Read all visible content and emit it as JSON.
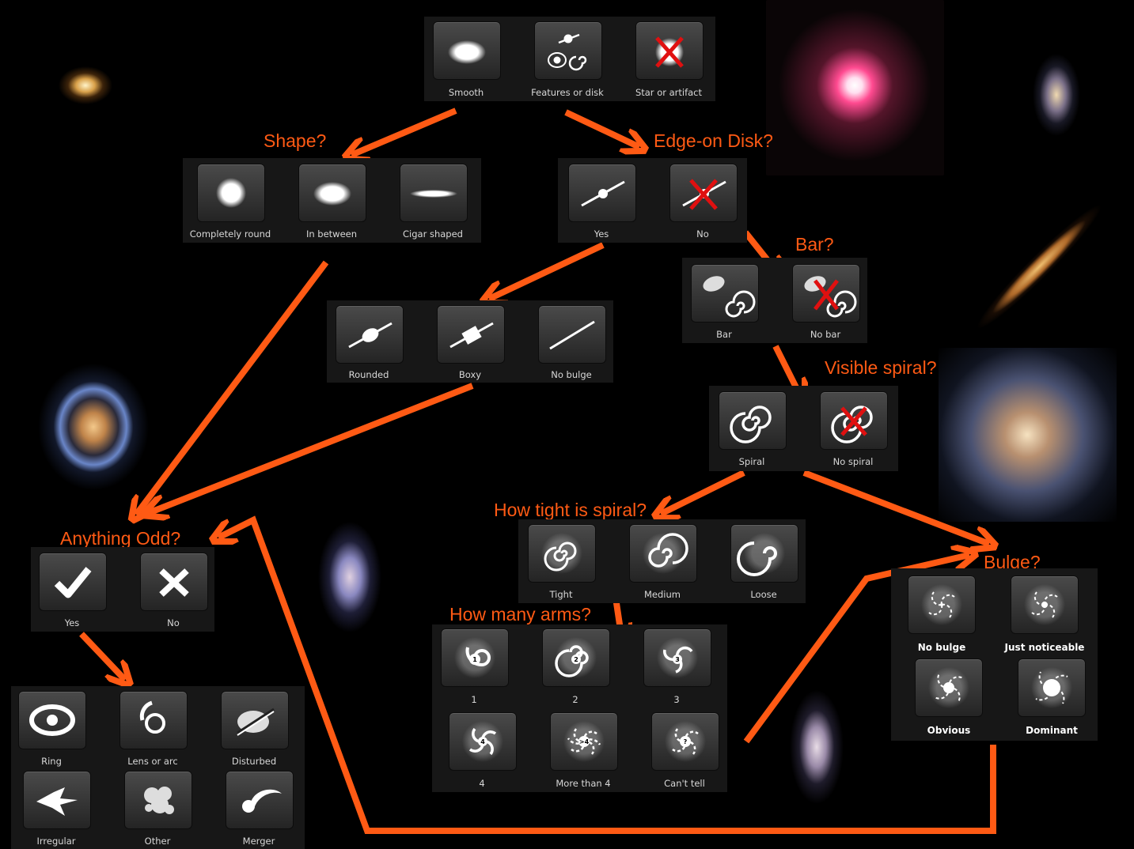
{
  "accent_color": "#ff5a14",
  "questions": {
    "shape": "Shape?",
    "edge_on": "Edge-on Disk?",
    "bar": "Bar?",
    "visible_spiral": "Visible spiral?",
    "tightness": "How tight is spiral?",
    "arms": "How many arms?",
    "bulge": "Bulge?",
    "odd": "Anything Odd?"
  },
  "start": [
    "Smooth",
    "Features or disk",
    "Star or artifact"
  ],
  "shape": [
    "Completely round",
    "In between",
    "Cigar shaped"
  ],
  "edge_on": [
    "Yes",
    "No"
  ],
  "edge_bulge": [
    "Rounded",
    "Boxy",
    "No bulge"
  ],
  "bar": [
    "Bar",
    "No bar"
  ],
  "spiral": [
    "Spiral",
    "No spiral"
  ],
  "tightness": [
    "Tight",
    "Medium",
    "Loose"
  ],
  "arms": [
    "1",
    "2",
    "3",
    "4",
    "More than 4",
    "Can't tell"
  ],
  "arm_badges": [
    "1",
    "2",
    "3",
    "4",
    ">4",
    "?"
  ],
  "bulge": [
    "No bulge",
    "Just noticeable",
    "Obvious",
    "Dominant"
  ],
  "odd": [
    "Yes",
    "No"
  ],
  "odd_type": [
    "Ring",
    "Lens or arc",
    "Disturbed",
    "Irregular",
    "Other",
    "Merger"
  ]
}
